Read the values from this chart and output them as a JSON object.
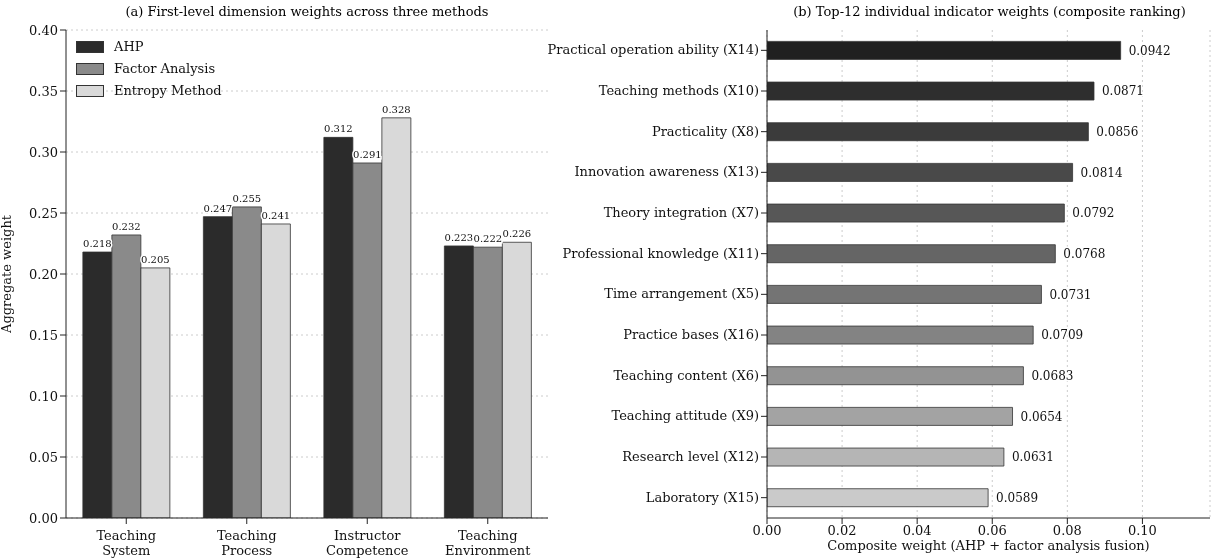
{
  "chart_data": [
    {
      "type": "bar",
      "title": "(a) First-level dimension weights across three methods",
      "ylabel": "Aggregate weight",
      "categories": [
        "Teaching System",
        "Teaching Process",
        "Instructor Competence",
        "Teaching Environment"
      ],
      "series": [
        {
          "name": "AHP",
          "color": "#2b2b2b",
          "values": [
            0.218,
            0.247,
            0.312,
            0.223
          ]
        },
        {
          "name": "Factor Analysis",
          "color": "#8a8a8a",
          "values": [
            0.232,
            0.255,
            0.291,
            0.222
          ]
        },
        {
          "name": "Entropy Method",
          "color": "#d9d9d9",
          "values": [
            0.205,
            0.241,
            0.328,
            0.226
          ]
        }
      ],
      "ylim": [
        0,
        0.4
      ],
      "yticks": [
        {
          "value": 0,
          "label": "0.00"
        },
        0.05,
        {
          "value": 0.1,
          "label": "0.10"
        },
        0.15,
        {
          "value": 0.2,
          "label": "0.20"
        },
        0.25,
        {
          "value": 0.3,
          "label": "0.30"
        },
        0.35,
        {
          "value": 0.4,
          "label": "0.40"
        }
      ],
      "grid": "y",
      "legend": "top left",
      "data_labels": true
    },
    {
      "type": "bar",
      "orientation": "horizontal",
      "title": "(b) Top-12 individual indicator weights (composite ranking)",
      "xlabel": "Composite weight (AHP + factor analysis fusion)",
      "categories": [
        "Practical operation ability (X14)",
        "Teaching methods (X10)",
        "Practicality (X8)",
        "Innovation awareness (X13)",
        "Theory integration (X7)",
        "Professional knowledge (X11)",
        "Time arrangement (X5)",
        "Practice bases (X16)",
        "Teaching content (X6)",
        "Teaching attitude (X9)",
        "Research level (X12)",
        "Laboratory (X15)"
      ],
      "values": [
        0.0942,
        0.0871,
        0.0856,
        0.0814,
        0.0792,
        0.0768,
        0.0731,
        0.0709,
        0.0683,
        0.0654,
        0.0631,
        0.0589
      ],
      "colors": [
        "#202020",
        "#2e2e2e",
        "#3b3b3b",
        "#494949",
        "#575757",
        "#656565",
        "#747474",
        "#838383",
        "#939393",
        "#a3a3a3",
        "#b5b5b5",
        "#cacaca"
      ],
      "xlim": [
        0,
        0.118
      ],
      "xticks": [
        {
          "value": 0,
          "label": "0.00"
        },
        0.02,
        0.04,
        0.06,
        0.08,
        {
          "value": 0.1,
          "label": "0.10"
        }
      ],
      "grid": "x",
      "data_labels": true
    }
  ]
}
